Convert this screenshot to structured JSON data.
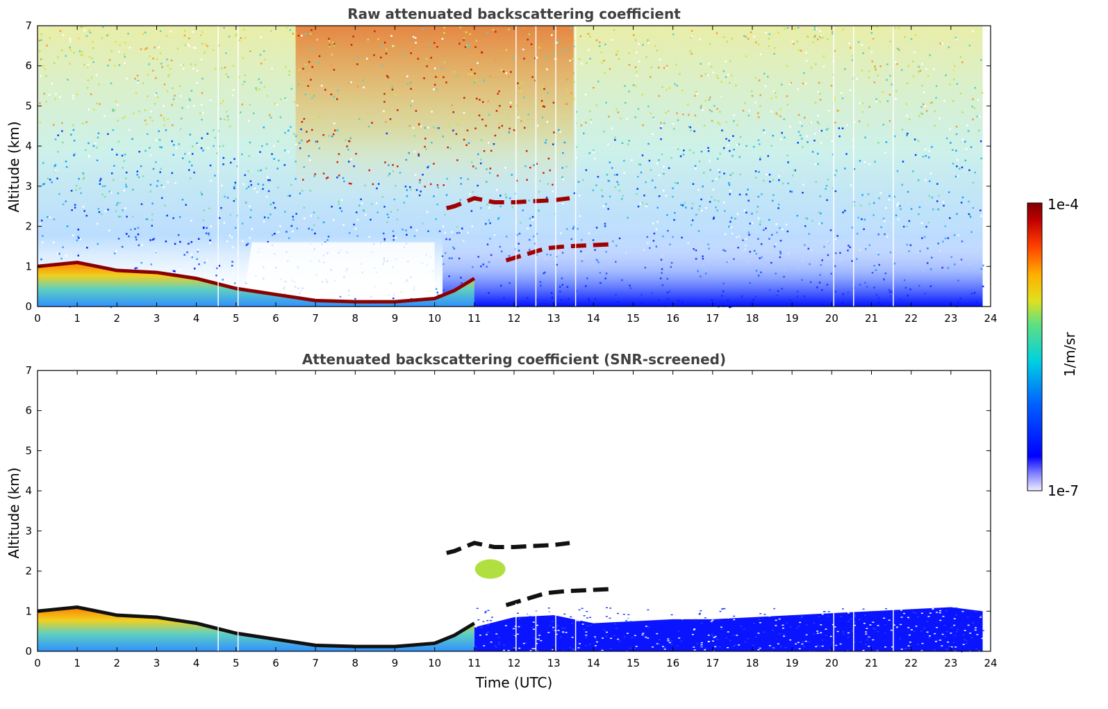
{
  "chart_data": [
    {
      "type": "heatmap",
      "title": "Raw attenuated backscattering coefficient",
      "xlabel": "",
      "ylabel": "Altitude (km)",
      "xlim": [
        0,
        24
      ],
      "ylim": [
        0,
        7
      ],
      "xticks": [
        "0",
        "1",
        "2",
        "3",
        "4",
        "5",
        "6",
        "7",
        "8",
        "9",
        "10",
        "11",
        "12",
        "13",
        "14",
        "15",
        "16",
        "17",
        "18",
        "19",
        "20",
        "21",
        "22",
        "23",
        "24"
      ],
      "yticks": [
        "0",
        "1",
        "2",
        "3",
        "4",
        "5",
        "6",
        "7"
      ],
      "features": [
        {
          "name": "boundary layer top",
          "x": [
            0,
            1,
            2,
            3,
            4,
            5,
            6,
            7,
            8,
            9,
            10,
            10.5,
            11
          ],
          "y": [
            1.0,
            1.1,
            0.9,
            0.85,
            0.7,
            0.45,
            0.3,
            0.15,
            0.12,
            0.12,
            0.2,
            0.4,
            0.7
          ]
        },
        {
          "name": "elevated layer",
          "x": [
            10.3,
            10.5,
            11.0,
            11.5,
            12.0,
            13.0,
            13.4
          ],
          "y": [
            2.45,
            2.5,
            2.7,
            2.6,
            2.6,
            2.65,
            2.7
          ]
        },
        {
          "name": "cloud layer",
          "x": [
            11.8,
            12.3,
            12.8,
            13.3,
            14.4
          ],
          "y": [
            1.15,
            1.3,
            1.45,
            1.5,
            1.55
          ]
        }
      ]
    },
    {
      "type": "heatmap",
      "title": "Attenuated backscattering coefficient (SNR-screened)",
      "xlabel": "Time (UTC)",
      "ylabel": "Altitude (km)",
      "xlim": [
        0,
        24
      ],
      "ylim": [
        0,
        7
      ],
      "xticks": [
        "0",
        "1",
        "2",
        "3",
        "4",
        "5",
        "6",
        "7",
        "8",
        "9",
        "10",
        "11",
        "12",
        "13",
        "14",
        "15",
        "16",
        "17",
        "18",
        "19",
        "20",
        "21",
        "22",
        "23",
        "24"
      ],
      "yticks": [
        "0",
        "1",
        "2",
        "3",
        "4",
        "5",
        "6",
        "7"
      ]
    }
  ],
  "colorbar": {
    "max_label": "1e-4",
    "min_label": "1e-7",
    "unit": "1/m/sr",
    "colors": [
      "#eeeeff",
      "#0000ff",
      "#00a0ff",
      "#00e0c0",
      "#c0e040",
      "#ffd000",
      "#ff6000",
      "#c00000",
      "#800000"
    ]
  }
}
